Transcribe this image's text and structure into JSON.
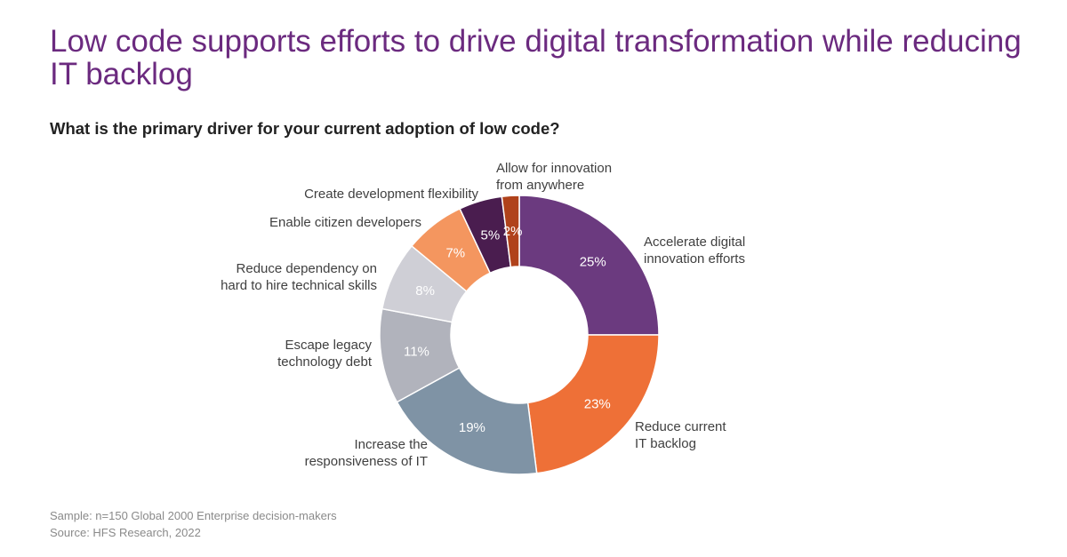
{
  "title": "Low code supports efforts to drive digital transformation while reducing IT backlog",
  "subtitle": "What is the primary driver for your current adoption of low code?",
  "footer": {
    "sample": "Sample: n=150 Global 2000 Enterprise decision-makers",
    "source": "Source: HFS Research, 2022"
  },
  "chart_data": {
    "type": "pie",
    "donut": true,
    "start_angle_deg": 0,
    "direction": "clockwise",
    "categories": [
      "Accelerate digital innovation efforts",
      "Reduce current IT backlog",
      "Increase the responsiveness of IT",
      "Escape legacy technology debt",
      "Reduce dependency on hard to hire technical skills",
      "Enable citizen developers",
      "Create development flexibility",
      "Allow for innovation from anywhere"
    ],
    "values": [
      25,
      23,
      19,
      11,
      8,
      7,
      5,
      2
    ],
    "value_labels": [
      "25%",
      "23%",
      "19%",
      "11%",
      "8%",
      "7%",
      "5%",
      "2%"
    ],
    "label_lines": [
      [
        "Accelerate digital",
        "innovation efforts"
      ],
      [
        "Reduce current",
        "IT backlog"
      ],
      [
        "Increase the",
        "responsiveness of IT"
      ],
      [
        "Escape legacy",
        "technology debt"
      ],
      [
        "Reduce dependency on",
        "hard to hire technical skills"
      ],
      [
        "Enable citizen developers"
      ],
      [
        "Create development flexibility"
      ],
      [
        "Allow for innovation",
        "from anywhere"
      ]
    ],
    "colors": [
      "#6b3a7f",
      "#ee7037",
      "#7f93a5",
      "#b1b3bc",
      "#cfcfd6",
      "#f4965f",
      "#4a1d4f",
      "#b0421b"
    ],
    "value_label_colors": [
      "#ffffff",
      "#ffffff",
      "#ffffff",
      "#ffffff",
      "#ffffff",
      "#ffffff",
      "#ffffff",
      "#ffffff"
    ]
  }
}
